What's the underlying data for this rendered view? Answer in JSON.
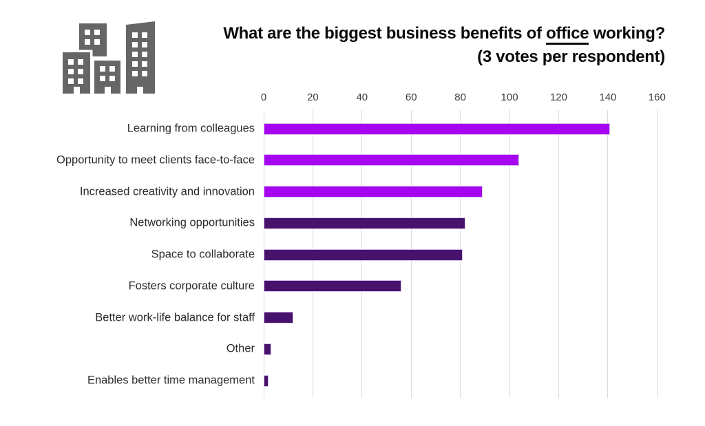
{
  "header": {
    "title_line1_prefix": "What are the biggest business benefits of ",
    "title_line1_underlined": "office",
    "title_line1_suffix": " working?",
    "title_line2": "(3 votes per respondent)"
  },
  "icons": {
    "buildings_icon_color": "#666666"
  },
  "chart_data": {
    "type": "bar",
    "orientation": "horizontal",
    "title": "What are the biggest business benefits of office working?",
    "subtitle": "(3 votes per respondent)",
    "categories": [
      "Learning from colleagues",
      "Opportunity to meet clients face-to-face",
      "Increased creativity and innovation",
      "Networking opportunities",
      "Space to collaborate",
      "Fosters corporate culture",
      "Better work-life balance for staff",
      "Other",
      "Enables better time management"
    ],
    "values": [
      141,
      104,
      89,
      82,
      81,
      56,
      12,
      3,
      2
    ],
    "bar_colors": [
      "#A605F2",
      "#A605F2",
      "#A605F2",
      "#47126B",
      "#47126B",
      "#47126B",
      "#47126B",
      "#47126B",
      "#47126B"
    ],
    "x_ticks": [
      0,
      20,
      40,
      60,
      80,
      100,
      120,
      140,
      160
    ],
    "xlim": [
      0,
      170
    ],
    "axis_position": "top",
    "grid": true,
    "gridline_color": "#dcdcdc",
    "legend": false,
    "accent_colors": {
      "bright_purple": "#A605F2",
      "dark_purple": "#47126B"
    }
  }
}
